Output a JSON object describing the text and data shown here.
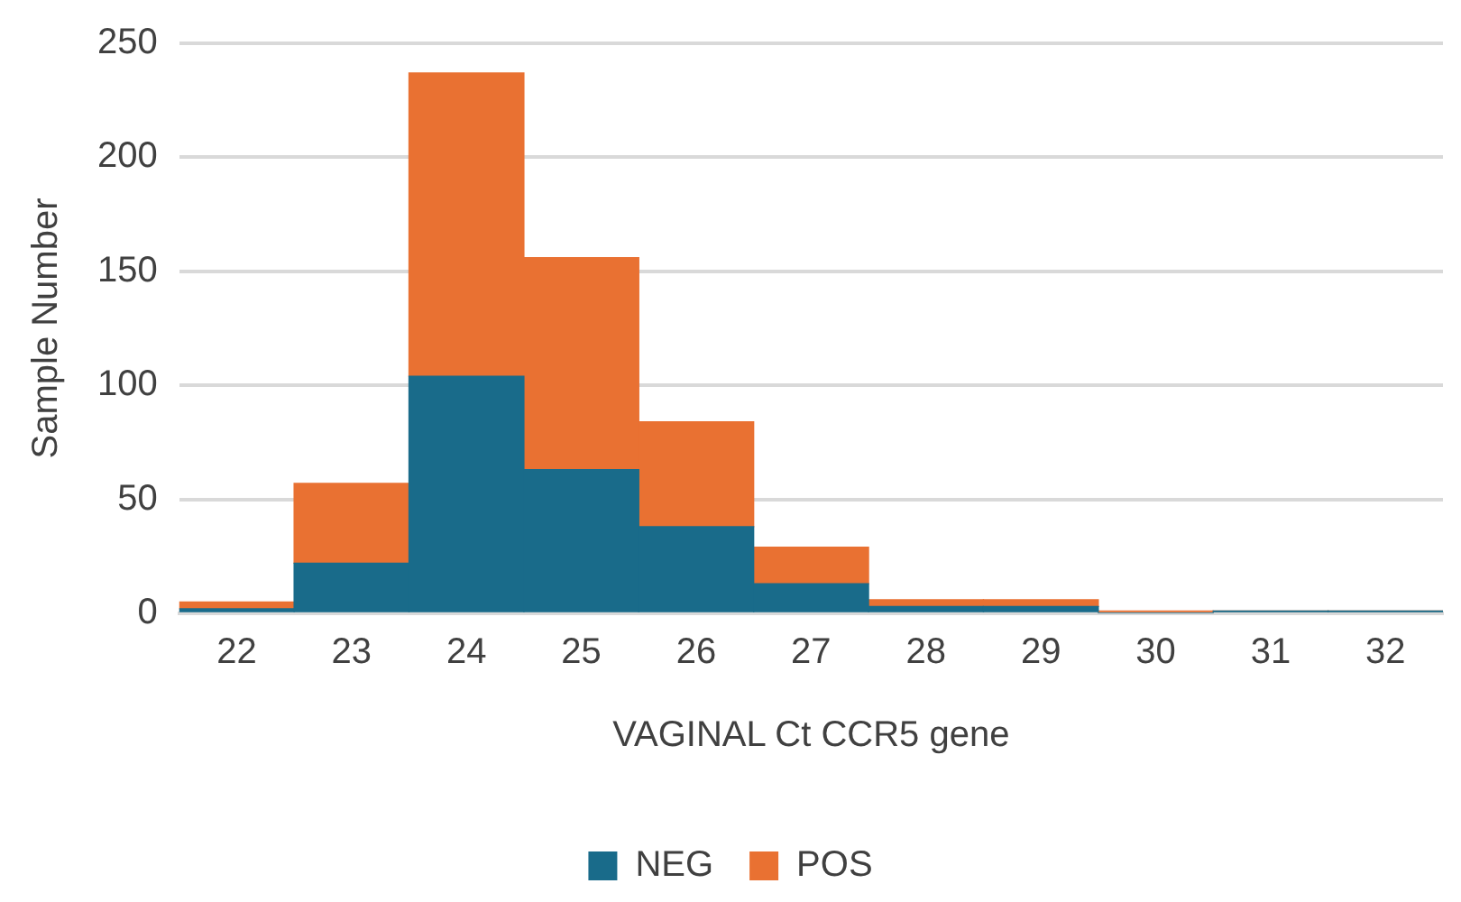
{
  "chart_data": {
    "type": "bar",
    "stacked": true,
    "xlabel": "VAGINAL Ct CCR5 gene",
    "ylabel": "Sample Number",
    "categories": [
      "22",
      "23",
      "24",
      "25",
      "26",
      "27",
      "28",
      "29",
      "30",
      "31",
      "32"
    ],
    "series": [
      {
        "name": "NEG",
        "color": "#196b8a",
        "values": [
          2,
          22,
          104,
          63,
          38,
          13,
          3,
          3,
          0,
          1,
          1
        ]
      },
      {
        "name": "POS",
        "color": "#e97132",
        "values": [
          3,
          35,
          133,
          93,
          46,
          16,
          3,
          3,
          1,
          0,
          0
        ]
      }
    ],
    "ylim": [
      0,
      250
    ],
    "yticks": [
      0,
      50,
      100,
      150,
      200,
      250
    ],
    "grid": "y",
    "legend": "bottom"
  }
}
